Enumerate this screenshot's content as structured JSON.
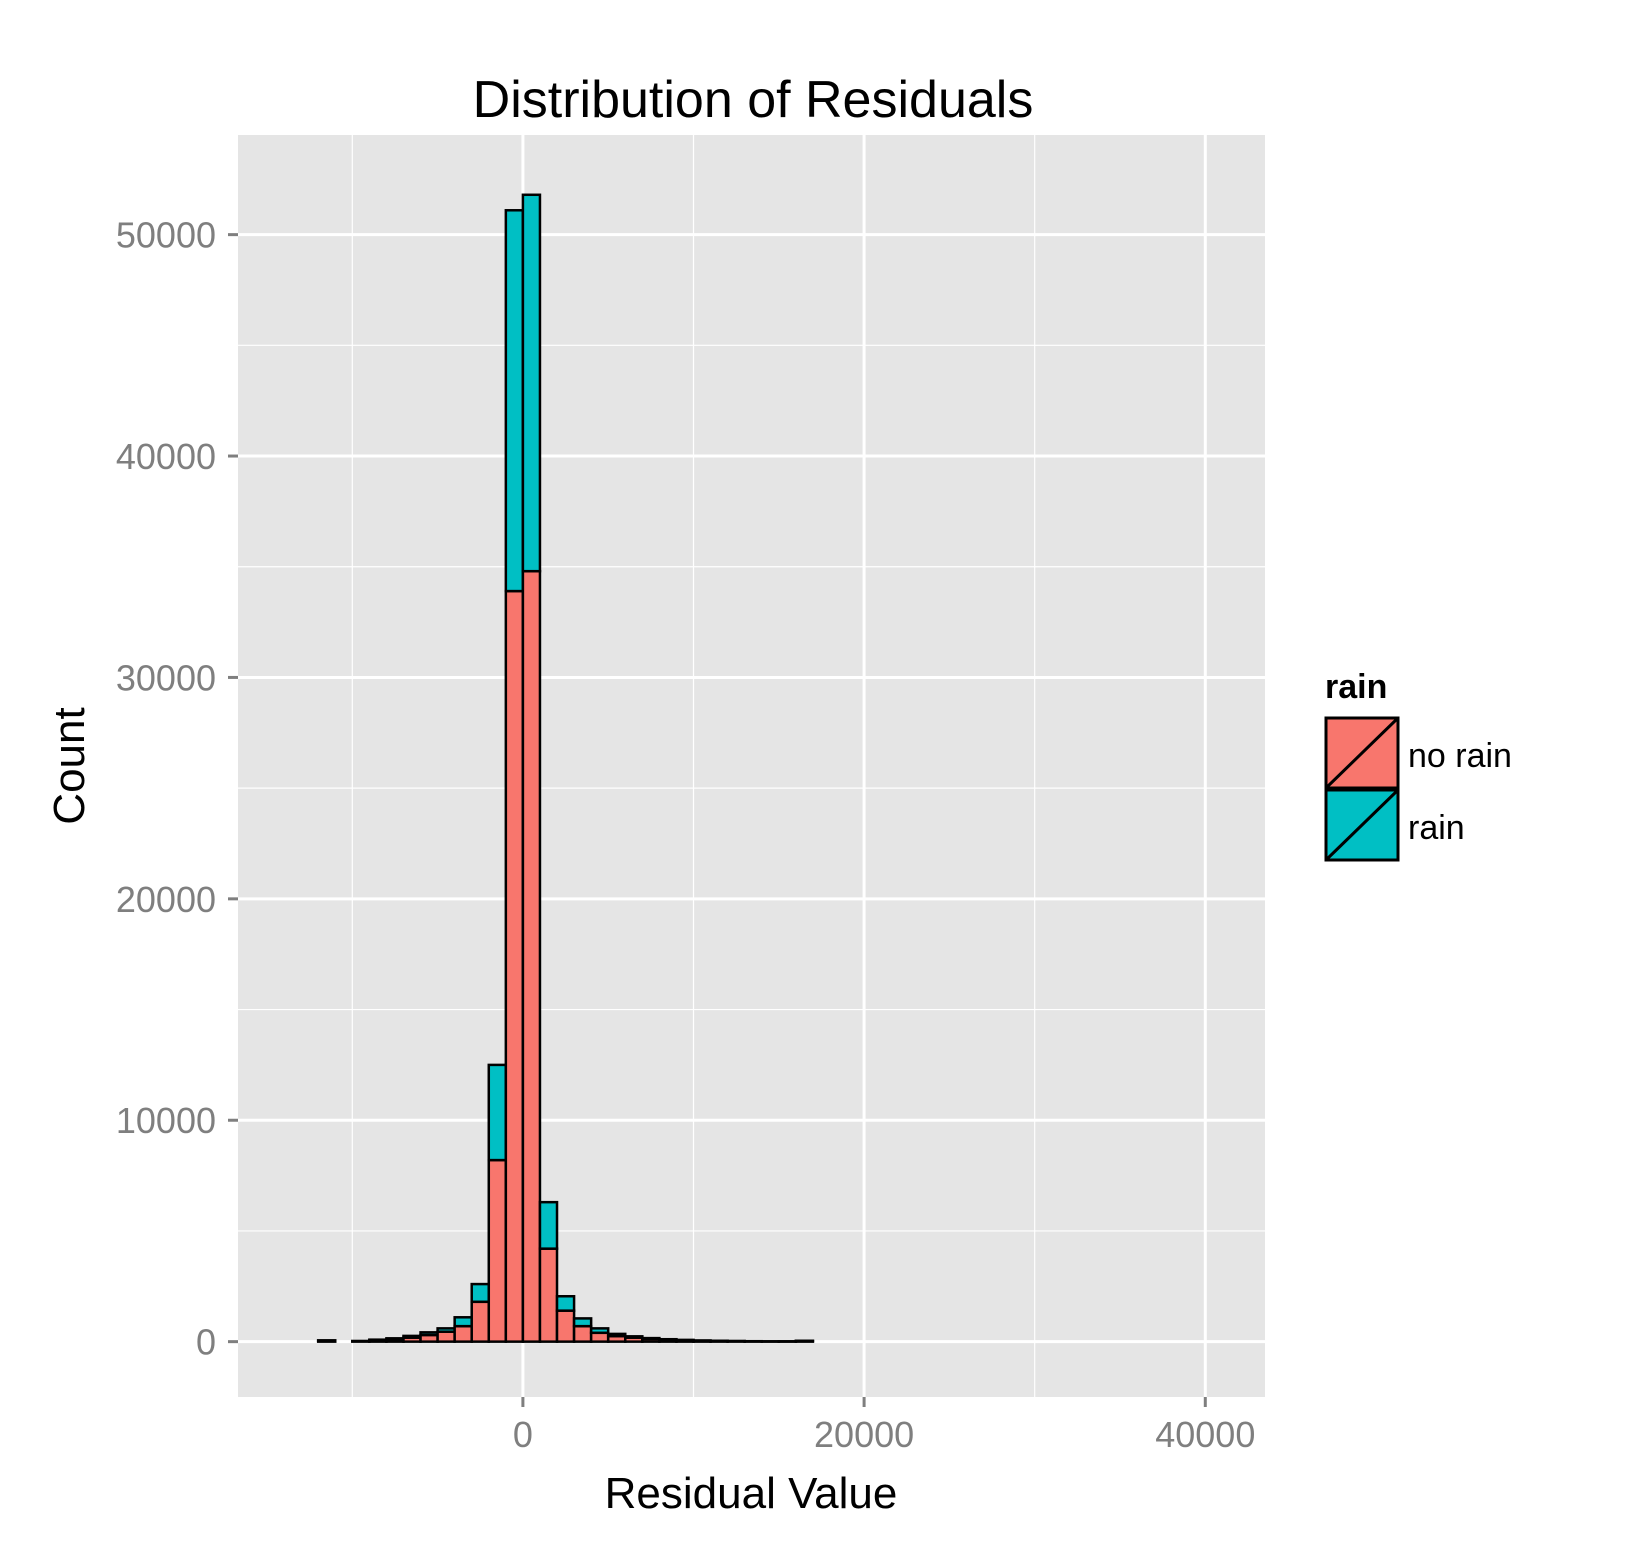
{
  "chart_data": {
    "type": "bar",
    "stacked": true,
    "title": "Distribution of Residuals",
    "xlabel": "Residual Value",
    "ylabel": "Count",
    "xlim": [
      -16700,
      43500
    ],
    "ylim": [
      -2500,
      54500
    ],
    "x_ticks": [
      0,
      20000,
      40000
    ],
    "y_ticks": [
      0,
      10000,
      20000,
      30000,
      40000,
      50000
    ],
    "grid": true,
    "bin_width": 1000,
    "bin_left_edges": [
      -14000,
      -13000,
      -12000,
      -11000,
      -10000,
      -9000,
      -8000,
      -7000,
      -6000,
      -5000,
      -4000,
      -3000,
      -2000,
      -1000,
      0,
      1000,
      2000,
      3000,
      4000,
      5000,
      6000,
      7000,
      8000,
      9000,
      10000,
      11000,
      12000,
      13000,
      14000,
      15000,
      16000,
      17000,
      18000,
      19000,
      20000,
      21000,
      22000,
      23000,
      24000,
      25000,
      26000,
      27000,
      28000,
      29000,
      30000,
      31000,
      32000,
      33000,
      34000,
      35000,
      36000,
      37000,
      38000,
      39000,
      40000
    ],
    "series": [
      {
        "name": "no rain",
        "color": "#F8766D",
        "values": [
          0,
          0,
          40,
          0,
          20,
          60,
          100,
          180,
          300,
          450,
          700,
          1800,
          8200,
          33900,
          34800,
          4200,
          1400,
          700,
          400,
          250,
          180,
          120,
          80,
          60,
          40,
          30,
          20,
          15,
          10,
          10,
          30,
          0,
          0,
          0,
          0,
          0,
          0,
          0,
          0,
          0,
          0,
          0,
          0,
          0,
          0,
          0,
          0,
          0,
          0,
          0,
          0,
          0,
          0,
          0,
          0
        ]
      },
      {
        "name": "rain",
        "color": "#00BFC4",
        "values": [
          0,
          0,
          20,
          0,
          10,
          30,
          50,
          80,
          120,
          150,
          400,
          800,
          4300,
          17200,
          17000,
          2100,
          650,
          350,
          200,
          100,
          60,
          40,
          30,
          20,
          15,
          10,
          10,
          5,
          5,
          5,
          10,
          0,
          0,
          0,
          0,
          0,
          0,
          0,
          0,
          0,
          0,
          0,
          0,
          0,
          0,
          0,
          0,
          0,
          0,
          0,
          0,
          0,
          0,
          0,
          0
        ]
      }
    ],
    "legend": {
      "title": "rain",
      "position": "right"
    }
  }
}
